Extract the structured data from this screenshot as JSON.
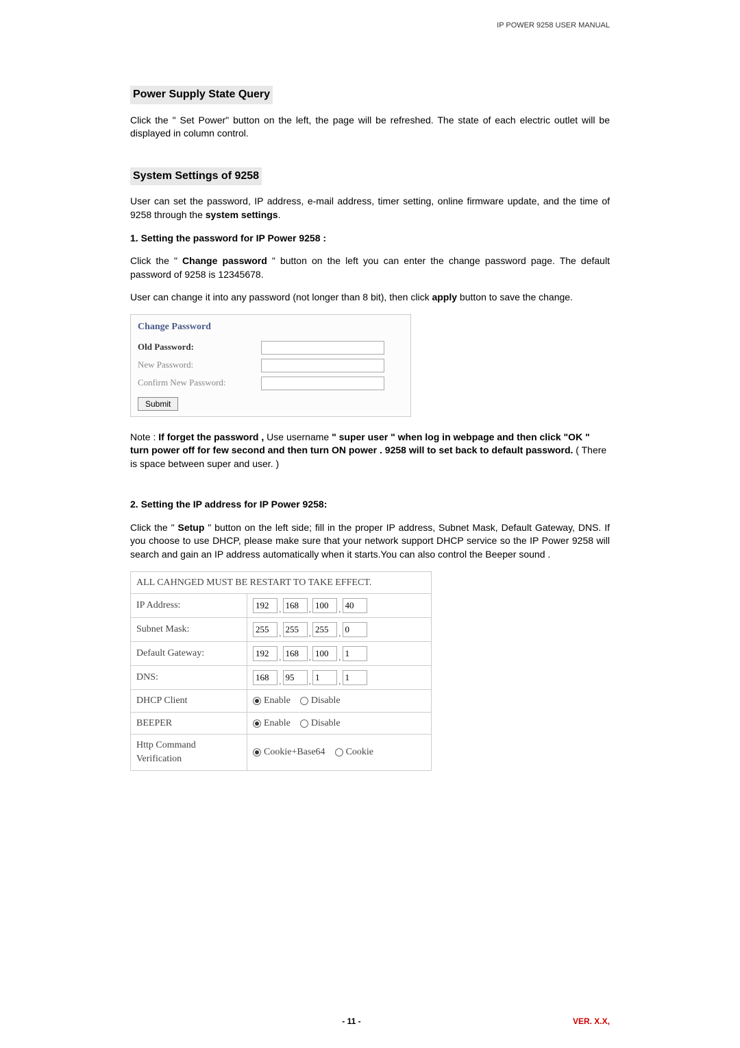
{
  "header": {
    "title": "IP POWER 9258 USER MANUAL"
  },
  "section1": {
    "heading": "Power Supply State Query",
    "text": "Click the \" Set Power\"  button on the left, the page will be refreshed. The state of each electric outlet will be displayed in column control."
  },
  "section2": {
    "heading": "System Settings of 9258",
    "intro_a": "User can set the password, IP address, e-mail address, timer setting, online firmware update, and the time of 9258 through the ",
    "intro_b": "system settings",
    "intro_c": ".",
    "sub1": {
      "heading": "1. Setting the password for IP Power 9258 :",
      "para1_a": "Click the \" ",
      "para1_b": "Change password",
      "para1_c": " \" button on the left you can enter the change password page. The default password of 9258 is 12345678.",
      "para2_a": "User can change it into any password (not longer than 8 bit), then click ",
      "para2_b": "apply",
      "para2_c": " button to save the change."
    },
    "changePasswordBox": {
      "title": "Change Password",
      "rows": [
        {
          "label": "Old Password:",
          "dark": true
        },
        {
          "label": "New Password:",
          "dark": false
        },
        {
          "label": "Confirm New Password:",
          "dark": false
        }
      ],
      "submit": "Submit"
    },
    "note": {
      "prefix": "Note : ",
      "bold1": "If forget the password  ,",
      "mid1": " Use username ",
      "bold2": "\" super user \"  when log in  webpage  and then click  \"OK \"  turn power off for few second and then turn ON power  .   9258 will to set back to default password.",
      "tail": "  ( There is space between super and user. )"
    },
    "sub2": {
      "heading": "2.  Setting the IP address for IP Power 9258",
      "colon": ":",
      "para_a": "Click the \" ",
      "para_b": "Setup",
      "para_c": " \" button on the left side; fill in the proper IP address, Subnet Mask, Default Gateway, DNS. If you choose to use DHCP, please make sure that your network support DHCP service so  the IP Power 9258 will search and gain an IP address automatically when it starts.You can also control the Beeper  sound ."
    },
    "ipTable": {
      "banner": "ALL CAHNGED MUST BE RESTART TO TAKE EFFECT.",
      "rows": [
        {
          "label": "IP Address:",
          "type": "octets",
          "values": [
            "192",
            "168",
            "100",
            "40"
          ]
        },
        {
          "label": "Subnet Mask:",
          "type": "octets",
          "values": [
            "255",
            "255",
            "255",
            "0"
          ]
        },
        {
          "label": "Default Gateway:",
          "type": "octets",
          "values": [
            "192",
            "168",
            "100",
            "1"
          ]
        },
        {
          "label": "DNS:",
          "type": "octets",
          "values": [
            "168",
            "95",
            "1",
            "1"
          ]
        },
        {
          "label": "DHCP Client",
          "type": "radio",
          "options": [
            "Enable",
            "Disable"
          ],
          "selected": 0
        },
        {
          "label": "BEEPER",
          "type": "radio",
          "options": [
            "Enable",
            "Disable"
          ],
          "selected": 0
        },
        {
          "label": "Http Command Verification",
          "type": "radio",
          "options": [
            "Cookie+Base64",
            "Cookie"
          ],
          "selected": 0
        }
      ]
    }
  },
  "footer": {
    "pageLabel": "- 11 -",
    "versionLabel": "VER.  X.X,"
  },
  "colors": {
    "highlight_bg": "#e8e8e8",
    "box_border": "#cccccc",
    "cp_title": "#4a5a8a",
    "version": "#cc0000"
  }
}
